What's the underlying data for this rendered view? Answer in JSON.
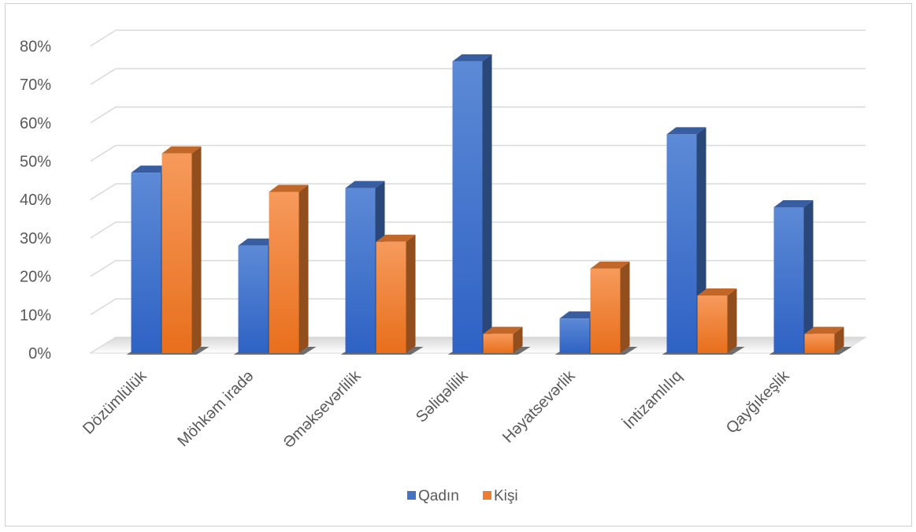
{
  "chart_data": {
    "type": "bar",
    "title": "",
    "xlabel": "",
    "ylabel": "",
    "ylim": [
      0,
      80
    ],
    "yticks": [
      "0%",
      "10%",
      "20%",
      "30%",
      "40%",
      "50%",
      "60%",
      "70%",
      "80%"
    ],
    "categories": [
      "Dözümlülük",
      "Möhkəm iradə",
      "Əməksevərlilik",
      "Səliqəlilik",
      "Həyatsevərlik",
      "İntizamlılıq",
      "Qayğıkeşlik"
    ],
    "series": [
      {
        "name": "Qadın",
        "values": [
          47,
          28,
          43,
          76,
          9,
          57,
          38
        ],
        "color": "#4472c4"
      },
      {
        "name": "Kişi",
        "values": [
          52,
          42,
          29,
          5,
          22,
          15,
          5
        ],
        "color": "#ed7d31"
      }
    ],
    "grid": true,
    "legend": "bottom",
    "style": "3d-clustered-column"
  }
}
